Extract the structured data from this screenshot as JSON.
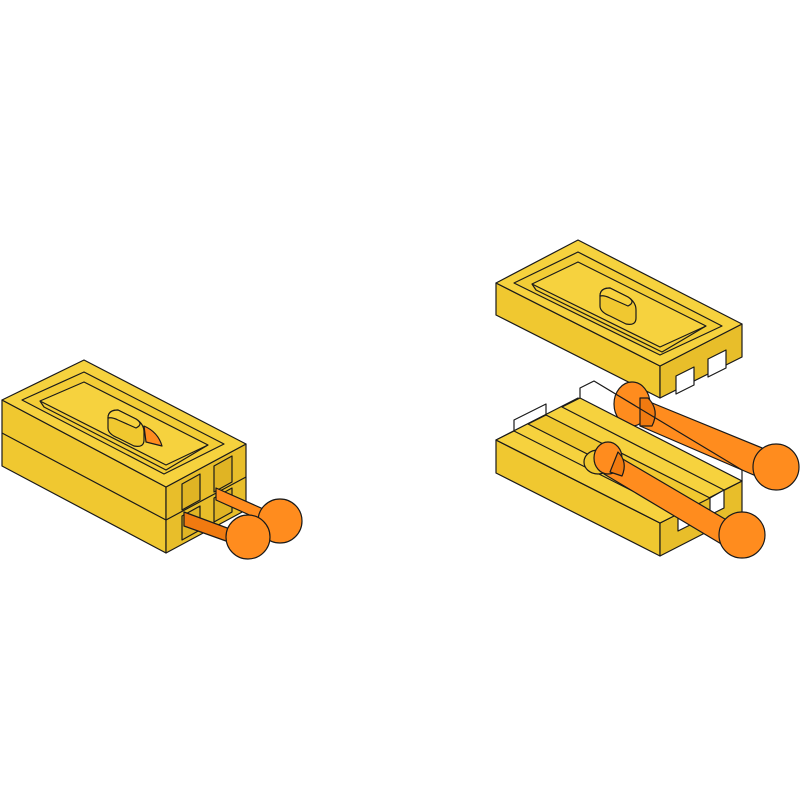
{
  "colors": {
    "background": "#ffffff",
    "block_top": "#f6d23e",
    "block_front": "#f0c830",
    "block_side": "#e8be2a",
    "pin_body": "#ff8c1e",
    "pin_dark": "#f07a10",
    "outline": "#1a1a1a"
  },
  "parts": {
    "assembled": "assembled-puzzle-block",
    "exploded_top": "exploded-top-half",
    "exploded_bottom": "exploded-bottom-half",
    "pin": "ball-head-pin"
  }
}
